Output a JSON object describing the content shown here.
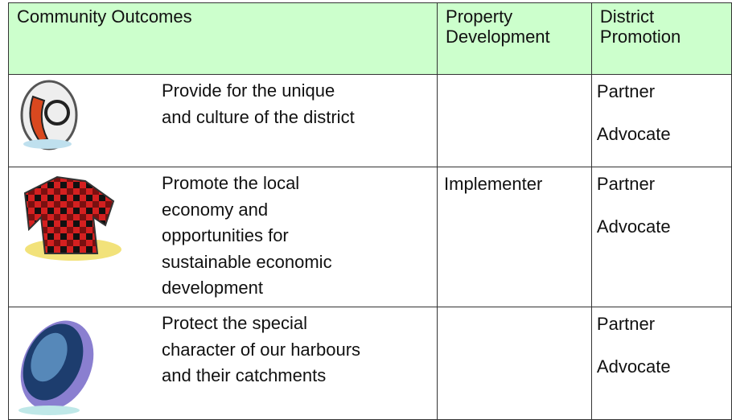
{
  "table": {
    "header": [
      "Community Outcomes",
      "Property Development",
      "District Promotion"
    ],
    "rows": [
      {
        "outcome": [
          "Provide for the unique",
          "and culture of the district"
        ],
        "promotion": [
          "Partner",
          "Advocate"
        ]
      },
      {
        "outcome": [
          "Promote the local",
          "economy and",
          "opportunities for",
          "sustainable economic",
          "development"
        ],
        "property_development": "Implementer",
        "promotion": [
          "Partner",
          "Advocate"
        ]
      },
      {
        "outcome": [
          "Protect the special",
          "character of our harbours",
          "and their catchments"
        ],
        "promotion": [
          "Partner",
          "Advocate"
        ]
      }
    ]
  }
}
